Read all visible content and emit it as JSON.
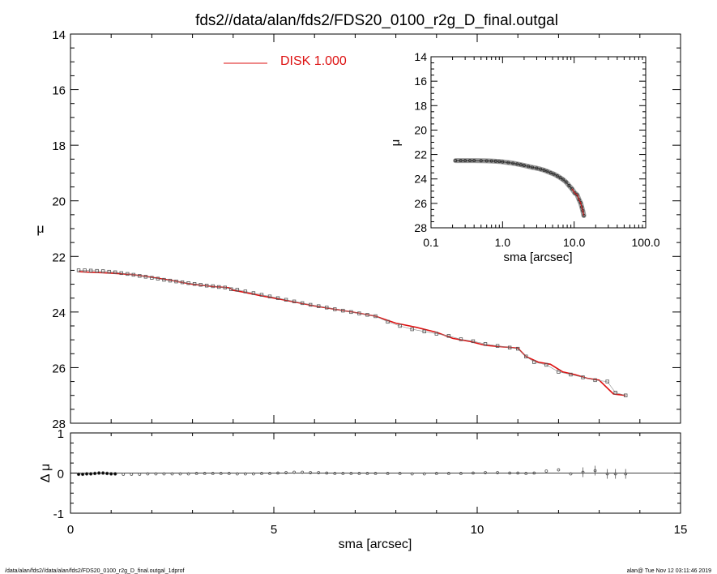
{
  "title": "fds2//data/alan/fds2/FDS20_0100_r2g_D_final.outgal",
  "footer": {
    "left": "/data/alan/fds2//data/alan/fds2/FDS20_0100_r2g_D_final.outgal_1dprof",
    "right": "alan@  Tue Nov 12 03:11:46 2019"
  },
  "colors": {
    "model": "#dd1111",
    "data": "#555555",
    "axes": "#000000"
  },
  "chart_data": [
    {
      "type": "line",
      "name": "main",
      "xlabel": "sma [arcsec]",
      "ylabel": "μ",
      "xlim": [
        0,
        15
      ],
      "ylim": [
        28,
        14
      ],
      "y_inverted": true,
      "xticks": [
        "0",
        "5",
        "10",
        "15"
      ],
      "yticks": [
        "14",
        "16",
        "18",
        "20",
        "22",
        "24",
        "26",
        "28"
      ],
      "legend": {
        "label": "DISK  1.000",
        "color": "#dd1111",
        "placement": "top-left"
      },
      "data_x": [
        0.2,
        0.35,
        0.5,
        0.65,
        0.8,
        0.95,
        1.1,
        1.25,
        1.4,
        1.55,
        1.7,
        1.85,
        2.0,
        2.15,
        2.3,
        2.45,
        2.6,
        2.75,
        2.9,
        3.05,
        3.2,
        3.35,
        3.5,
        3.65,
        3.8,
        3.95,
        4.1,
        4.3,
        4.5,
        4.7,
        4.9,
        5.1,
        5.3,
        5.5,
        5.7,
        5.9,
        6.1,
        6.3,
        6.5,
        6.7,
        6.9,
        7.1,
        7.3,
        7.5,
        7.8,
        8.1,
        8.4,
        8.7,
        9.0,
        9.3,
        9.6,
        9.9,
        10.2,
        10.5,
        10.8,
        11.0,
        11.2,
        11.4,
        11.7,
        12.0,
        12.3,
        12.6,
        12.9,
        13.2,
        13.4,
        13.65
      ],
      "data_y": [
        22.5,
        22.5,
        22.51,
        22.52,
        22.53,
        22.55,
        22.57,
        22.6,
        22.63,
        22.66,
        22.7,
        22.73,
        22.77,
        22.8,
        22.84,
        22.87,
        22.9,
        22.93,
        22.96,
        22.99,
        23.02,
        23.05,
        23.07,
        23.1,
        23.12,
        23.18,
        23.2,
        23.26,
        23.32,
        23.38,
        23.44,
        23.5,
        23.56,
        23.62,
        23.68,
        23.74,
        23.79,
        23.84,
        23.9,
        23.95,
        24.0,
        24.05,
        24.1,
        24.15,
        24.35,
        24.5,
        24.62,
        24.7,
        24.78,
        24.86,
        24.98,
        25.05,
        25.15,
        25.22,
        25.28,
        25.32,
        25.6,
        25.8,
        25.9,
        26.15,
        26.25,
        26.35,
        26.45,
        26.5,
        26.9,
        27.0
      ],
      "model_x": [
        0.2,
        0.5,
        1.0,
        1.5,
        2.0,
        2.5,
        3.0,
        3.5,
        3.9,
        4.0,
        4.2,
        4.7,
        5.2,
        6.0,
        6.5,
        7.0,
        7.5,
        8.0,
        8.5,
        9.0,
        9.4,
        9.8,
        10.2,
        10.6,
        11.0,
        11.2,
        11.5,
        11.8,
        12.1,
        12.4,
        12.7,
        13.0,
        13.35,
        13.65
      ],
      "model_y": [
        22.55,
        22.57,
        22.6,
        22.65,
        22.75,
        22.87,
        23.0,
        23.08,
        23.13,
        23.22,
        23.27,
        23.42,
        23.55,
        23.78,
        23.9,
        24.02,
        24.15,
        24.4,
        24.55,
        24.73,
        24.95,
        25.05,
        25.2,
        25.25,
        25.3,
        25.6,
        25.8,
        25.88,
        26.15,
        26.25,
        26.38,
        26.45,
        26.95,
        27.0
      ]
    },
    {
      "type": "scatter",
      "name": "residual",
      "xlabel": "sma [arcsec]",
      "ylabel": "Δ μ",
      "xlim": [
        0,
        15
      ],
      "ylim": [
        -1,
        1
      ],
      "xticks": [
        "0",
        "5",
        "10",
        "15"
      ],
      "yticks": [
        "1",
        "0",
        "-1"
      ],
      "x": [
        0.2,
        0.3,
        0.4,
        0.5,
        0.6,
        0.7,
        0.8,
        0.9,
        1.0,
        1.1,
        1.3,
        1.5,
        1.7,
        1.9,
        2.1,
        2.3,
        2.5,
        2.7,
        2.9,
        3.1,
        3.3,
        3.5,
        3.7,
        3.9,
        4.1,
        4.3,
        4.5,
        4.7,
        4.9,
        5.1,
        5.3,
        5.5,
        5.7,
        5.9,
        6.1,
        6.3,
        6.5,
        6.7,
        6.9,
        7.1,
        7.3,
        7.5,
        7.8,
        8.1,
        8.4,
        8.7,
        9.0,
        9.3,
        9.6,
        9.9,
        10.2,
        10.5,
        10.8,
        11.0,
        11.2,
        11.4,
        11.7,
        12.0,
        12.3,
        12.6,
        12.9,
        13.2,
        13.4,
        13.65
      ],
      "y": [
        -0.03,
        -0.03,
        -0.02,
        -0.02,
        -0.01,
        0.0,
        0.0,
        -0.01,
        -0.02,
        -0.02,
        -0.03,
        -0.03,
        -0.03,
        -0.02,
        -0.02,
        -0.02,
        -0.02,
        -0.02,
        -0.02,
        -0.01,
        -0.01,
        -0.01,
        -0.01,
        -0.01,
        -0.02,
        -0.02,
        -0.02,
        -0.01,
        -0.01,
        0.0,
        0.01,
        0.02,
        0.02,
        0.01,
        0.01,
        0.0,
        -0.01,
        -0.01,
        -0.01,
        -0.01,
        -0.01,
        -0.01,
        -0.01,
        -0.01,
        -0.02,
        -0.02,
        -0.01,
        -0.01,
        -0.01,
        0.0,
        0.01,
        0.01,
        0.0,
        0.0,
        -0.01,
        0.0,
        0.05,
        0.08,
        -0.02,
        0.02,
        0.06,
        -0.02,
        -0.02,
        -0.02
      ]
    },
    {
      "type": "scatter",
      "name": "inset",
      "xlabel": "sma [arcsec]",
      "ylabel": "μ",
      "xscale": "log",
      "xlim": [
        0.1,
        100
      ],
      "ylim": [
        28,
        14
      ],
      "y_inverted": true,
      "xticks": [
        "0.1",
        "1.0",
        "10.0",
        "100.0"
      ],
      "yticks": [
        "14",
        "16",
        "18",
        "20",
        "22",
        "24",
        "26",
        "28"
      ],
      "x": [
        0.22,
        0.26,
        0.3,
        0.35,
        0.4,
        0.5,
        0.6,
        0.7,
        0.8,
        0.9,
        1.0,
        1.2,
        1.4,
        1.6,
        1.8,
        2.0,
        2.3,
        2.6,
        3.0,
        3.4,
        3.8,
        4.2,
        4.7,
        5.2,
        5.8,
        6.4,
        7.0,
        7.7,
        8.5,
        9.3,
        10.2,
        11.0,
        11.7,
        12.3,
        12.8,
        13.2,
        13.65
      ],
      "y": [
        22.5,
        22.5,
        22.5,
        22.5,
        22.5,
        22.51,
        22.52,
        22.53,
        22.55,
        22.57,
        22.6,
        22.66,
        22.72,
        22.78,
        22.84,
        22.9,
        22.98,
        23.05,
        23.12,
        23.2,
        23.28,
        23.38,
        23.5,
        23.6,
        23.75,
        23.9,
        24.05,
        24.25,
        24.55,
        24.8,
        25.15,
        25.3,
        25.7,
        25.95,
        26.3,
        26.6,
        27.0
      ]
    }
  ]
}
